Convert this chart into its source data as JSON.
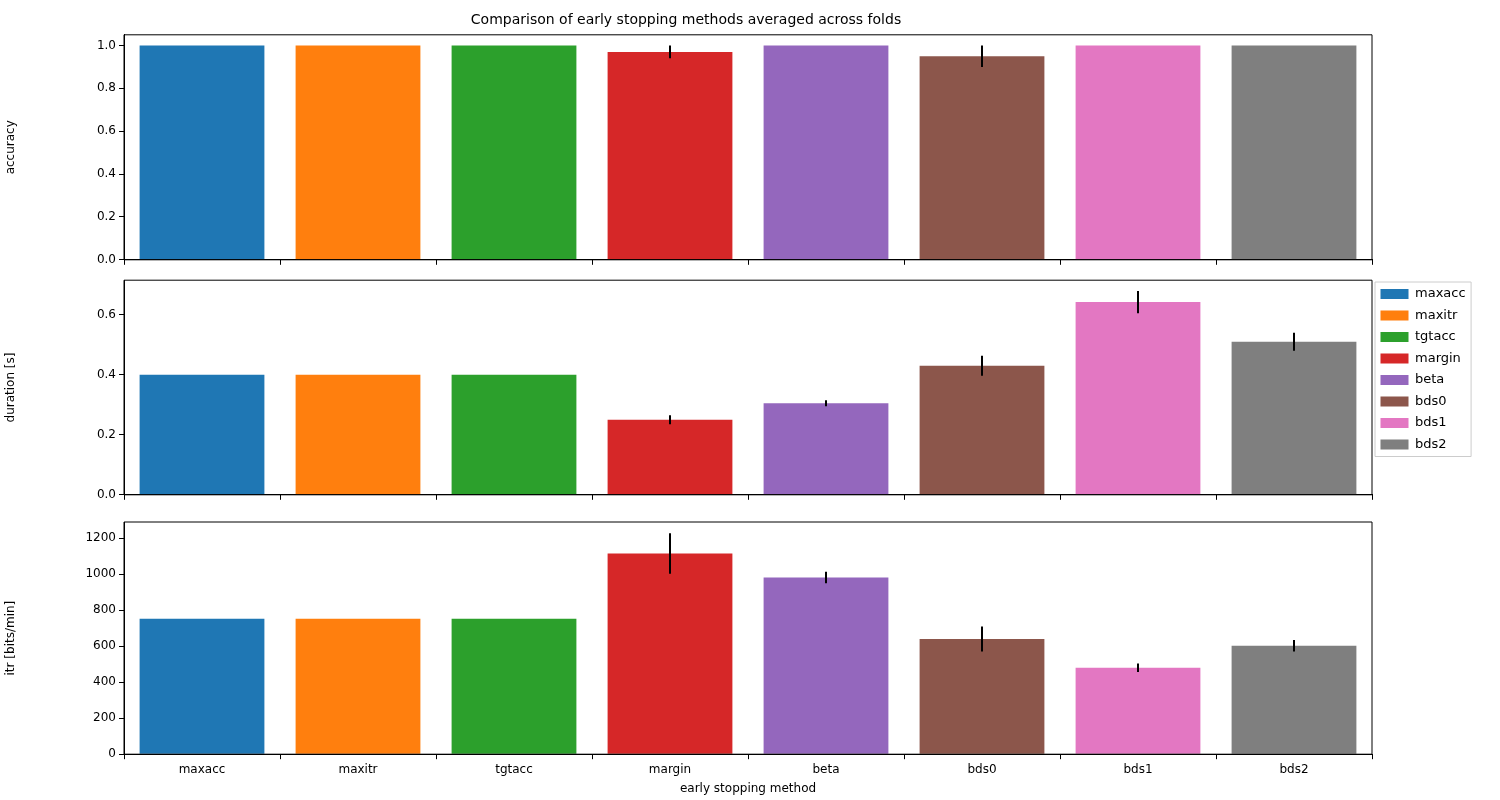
{
  "chart_data": [
    {
      "type": "bar",
      "title": "Comparison of early stopping methods averaged across folds",
      "ylabel": "accuracy",
      "categories": [
        null,
        null,
        null,
        null,
        null,
        null,
        null,
        null
      ],
      "values": [
        1.0,
        1.0,
        1.0,
        0.97,
        1.0,
        0.95,
        1.0,
        1.0
      ],
      "errors": [
        null,
        null,
        null,
        0.03,
        null,
        0.05,
        null,
        null
      ],
      "colors": [
        "#1f77b4",
        "#ff7f0e",
        "#2ca02c",
        "#d62728",
        "#9467bd",
        "#8c564b",
        "#e377c2",
        "#7f7f7f"
      ],
      "ylim": [
        0,
        1.05
      ],
      "yticks": [
        {
          "value": 0,
          "label": "0.0"
        },
        {
          "value": 0.2,
          "label": "0.2"
        },
        {
          "value": 0.4,
          "label": "0.4"
        },
        {
          "value": 0.6,
          "label": "0.6"
        },
        {
          "value": 0.8,
          "label": "0.8"
        },
        {
          "value": 1,
          "label": "1.0"
        }
      ],
      "tick_labels": "y",
      "grid": false
    },
    {
      "type": "bar",
      "ylabel": "duration [s]",
      "categories": [
        null,
        null,
        null,
        null,
        null,
        null,
        null,
        null
      ],
      "series": [
        {
          "name": "maxacc",
          "color": "#1f77b4",
          "values": [
            0.4,
            null,
            null,
            null,
            null,
            null,
            null,
            null
          ]
        },
        {
          "name": "maxitr",
          "color": "#ff7f0e",
          "values": [
            null,
            0.4,
            null,
            null,
            null,
            null,
            null,
            null
          ]
        },
        {
          "name": "tgtacc",
          "color": "#2ca02c",
          "values": [
            null,
            null,
            0.4,
            null,
            null,
            null,
            null,
            null
          ]
        },
        {
          "name": "margin",
          "color": "#d62728",
          "values": [
            null,
            null,
            null,
            0.25,
            null,
            null,
            null,
            null
          ],
          "errors": [
            null,
            null,
            null,
            0.015,
            null,
            null,
            null,
            null
          ]
        },
        {
          "name": "beta",
          "color": "#9467bd",
          "values": [
            null,
            null,
            null,
            null,
            0.305,
            null,
            null,
            null
          ],
          "errors": [
            null,
            null,
            null,
            null,
            0.01,
            null,
            null,
            null
          ]
        },
        {
          "name": "bds0",
          "color": "#8c564b",
          "values": [
            null,
            null,
            null,
            null,
            null,
            0.43,
            null,
            null
          ],
          "errors": [
            null,
            null,
            null,
            null,
            null,
            0.033,
            null,
            null
          ]
        },
        {
          "name": "bds1",
          "color": "#e377c2",
          "values": [
            null,
            null,
            null,
            null,
            null,
            null,
            0.642,
            null
          ],
          "errors": [
            null,
            null,
            null,
            null,
            null,
            null,
            0.037,
            null
          ]
        },
        {
          "name": "bds2",
          "color": "#7f7f7f",
          "values": [
            null,
            null,
            null,
            null,
            null,
            null,
            null,
            0.51
          ],
          "errors": [
            null,
            null,
            null,
            null,
            null,
            null,
            null,
            0.03
          ]
        }
      ],
      "ylim": [
        0,
        0.715
      ],
      "yticks": [
        {
          "value": 0,
          "label": "0.0"
        },
        {
          "value": 0.2,
          "label": "0.2"
        },
        {
          "value": 0.4,
          "label": "0.4"
        },
        {
          "value": 0.6,
          "label": "0.6"
        }
      ],
      "tick_labels": "y",
      "grid": false,
      "legend": "right"
    },
    {
      "type": "bar",
      "xlabel": "early stopping method",
      "ylabel": "itr [bits/min]",
      "categories": [
        "maxacc",
        "maxitr",
        "tgtacc",
        "margin",
        "beta",
        "bds0",
        "bds1",
        "bds2"
      ],
      "values": [
        753,
        753,
        753,
        1115,
        982,
        640,
        480,
        603
      ],
      "errors": [
        null,
        null,
        null,
        113,
        32,
        70,
        24,
        32
      ],
      "colors": [
        "#1f77b4",
        "#ff7f0e",
        "#2ca02c",
        "#d62728",
        "#9467bd",
        "#8c564b",
        "#e377c2",
        "#7f7f7f"
      ],
      "ylim": [
        0,
        1290
      ],
      "yticks": [
        0,
        200,
        400,
        600,
        800,
        1000,
        1200
      ],
      "grid": false
    }
  ]
}
